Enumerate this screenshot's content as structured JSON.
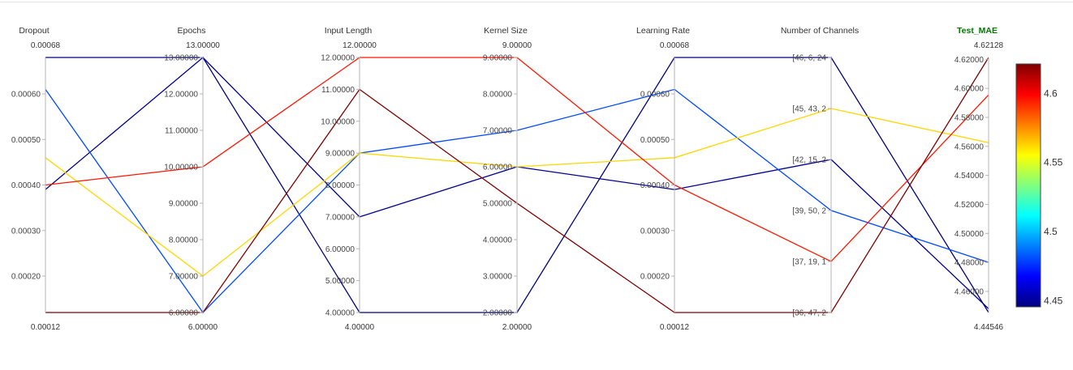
{
  "chart_data": {
    "type": "parallel_coordinates",
    "colorbar": {
      "colorscale": "jet",
      "ticks": [
        "4.6",
        "4.55",
        "4.5",
        "4.45"
      ],
      "range": [
        4.44546,
        4.62128
      ]
    },
    "axes": [
      {
        "key": "dropout",
        "label": "Dropout",
        "highlight": false,
        "min_label": "0.00012",
        "max_label": "0.00068",
        "range": [
          0.00012,
          0.00068
        ],
        "ticks": [
          {
            "value": 0.0002,
            "label": "0.00020"
          },
          {
            "value": 0.0003,
            "label": "0.00030"
          },
          {
            "value": 0.0004,
            "label": "0.00040"
          },
          {
            "value": 0.0005,
            "label": "0.00050"
          },
          {
            "value": 0.0006,
            "label": "0.00060"
          }
        ]
      },
      {
        "key": "epochs",
        "label": "Epochs",
        "highlight": false,
        "min_label": "6.00000",
        "max_label": "13.00000",
        "range": [
          6,
          13
        ],
        "ticks": [
          {
            "value": 6,
            "label": "6.00000"
          },
          {
            "value": 7,
            "label": "7.00000"
          },
          {
            "value": 8,
            "label": "8.00000"
          },
          {
            "value": 9,
            "label": "9.00000"
          },
          {
            "value": 10,
            "label": "10.00000"
          },
          {
            "value": 11,
            "label": "11.00000"
          },
          {
            "value": 12,
            "label": "12.00000"
          },
          {
            "value": 13,
            "label": "13.00000"
          }
        ]
      },
      {
        "key": "input_length",
        "label": "Input Length",
        "highlight": false,
        "min_label": "4.00000",
        "max_label": "12.00000",
        "range": [
          4,
          12
        ],
        "ticks": [
          {
            "value": 4,
            "label": "4.00000"
          },
          {
            "value": 5,
            "label": "5.00000"
          },
          {
            "value": 6,
            "label": "6.00000"
          },
          {
            "value": 7,
            "label": "7.00000"
          },
          {
            "value": 8,
            "label": "8.00000"
          },
          {
            "value": 9,
            "label": "9.00000"
          },
          {
            "value": 10,
            "label": "10.00000"
          },
          {
            "value": 11,
            "label": "11.00000"
          },
          {
            "value": 12,
            "label": "12.00000"
          }
        ]
      },
      {
        "key": "kernel_size",
        "label": "Kernel Size",
        "highlight": false,
        "min_label": "2.00000",
        "max_label": "9.00000",
        "range": [
          2,
          9
        ],
        "ticks": [
          {
            "value": 2,
            "label": "2.00000"
          },
          {
            "value": 3,
            "label": "3.00000"
          },
          {
            "value": 4,
            "label": "4.00000"
          },
          {
            "value": 5,
            "label": "5.00000"
          },
          {
            "value": 6,
            "label": "6.00000"
          },
          {
            "value": 7,
            "label": "7.00000"
          },
          {
            "value": 8,
            "label": "8.00000"
          },
          {
            "value": 9,
            "label": "9.00000"
          }
        ]
      },
      {
        "key": "learning_rate",
        "label": "Learning Rate",
        "highlight": false,
        "min_label": "0.00012",
        "max_label": "0.00068",
        "range": [
          0.00012,
          0.00068
        ],
        "ticks": [
          {
            "value": 0.0002,
            "label": "0.00020"
          },
          {
            "value": 0.0003,
            "label": "0.00030"
          },
          {
            "value": 0.0004,
            "label": "0.00040"
          },
          {
            "value": 0.0005,
            "label": "0.00050"
          },
          {
            "value": 0.0006,
            "label": "0.00060"
          }
        ]
      },
      {
        "key": "channels",
        "label": "Number of Channels",
        "highlight": false,
        "categorical": true,
        "ticks": [
          {
            "value": 0,
            "label": "[36, 47, 2"
          },
          {
            "value": 1,
            "label": "[37, 19, 1"
          },
          {
            "value": 2,
            "label": "[39, 50, 2"
          },
          {
            "value": 3,
            "label": "[42, 15, 2"
          },
          {
            "value": 4,
            "label": "[45, 43, 2"
          },
          {
            "value": 5,
            "label": "[46, 6, 24"
          }
        ]
      },
      {
        "key": "test_mae",
        "label": "Test_MAE",
        "highlight": true,
        "min_label": "4.44546",
        "max_label": "4.62128",
        "range": [
          4.44546,
          4.62128
        ],
        "ticks": [
          {
            "value": 4.46,
            "label": "4.46000"
          },
          {
            "value": 4.48,
            "label": "4.48000"
          },
          {
            "value": 4.5,
            "label": "4.50000"
          },
          {
            "value": 4.52,
            "label": "4.52000"
          },
          {
            "value": 4.54,
            "label": "4.54000"
          },
          {
            "value": 4.56,
            "label": "4.56000"
          },
          {
            "value": 4.58,
            "label": "4.58000"
          },
          {
            "value": 4.6,
            "label": "4.60000"
          },
          {
            "value": 4.62,
            "label": "4.62000"
          }
        ]
      }
    ],
    "lines": [
      {
        "dropout": 0.00068,
        "epochs": 13,
        "input_length": 4,
        "kernel_size": 2,
        "learning_rate": 0.00068,
        "channels": 5,
        "test_mae": 4.44546
      },
      {
        "dropout": 0.00039,
        "epochs": 13,
        "input_length": 7,
        "kernel_size": 6,
        "learning_rate": 0.00039,
        "channels": 3,
        "test_mae": 4.448
      },
      {
        "dropout": 0.00061,
        "epochs": 6,
        "input_length": 9,
        "kernel_size": 7,
        "learning_rate": 0.00061,
        "channels": 2,
        "test_mae": 4.48
      },
      {
        "dropout": 0.00046,
        "epochs": 7,
        "input_length": 9,
        "kernel_size": 6,
        "learning_rate": 0.00046,
        "channels": 4,
        "test_mae": 4.5625
      },
      {
        "dropout": 0.0004,
        "epochs": 10,
        "input_length": 12,
        "kernel_size": 9,
        "learning_rate": 0.0004,
        "channels": 1,
        "test_mae": 4.5955
      },
      {
        "dropout": 0.00012,
        "epochs": 6,
        "input_length": 11,
        "kernel_size": 5,
        "learning_rate": 0.00012,
        "channels": 0,
        "test_mae": 4.62128
      }
    ]
  }
}
